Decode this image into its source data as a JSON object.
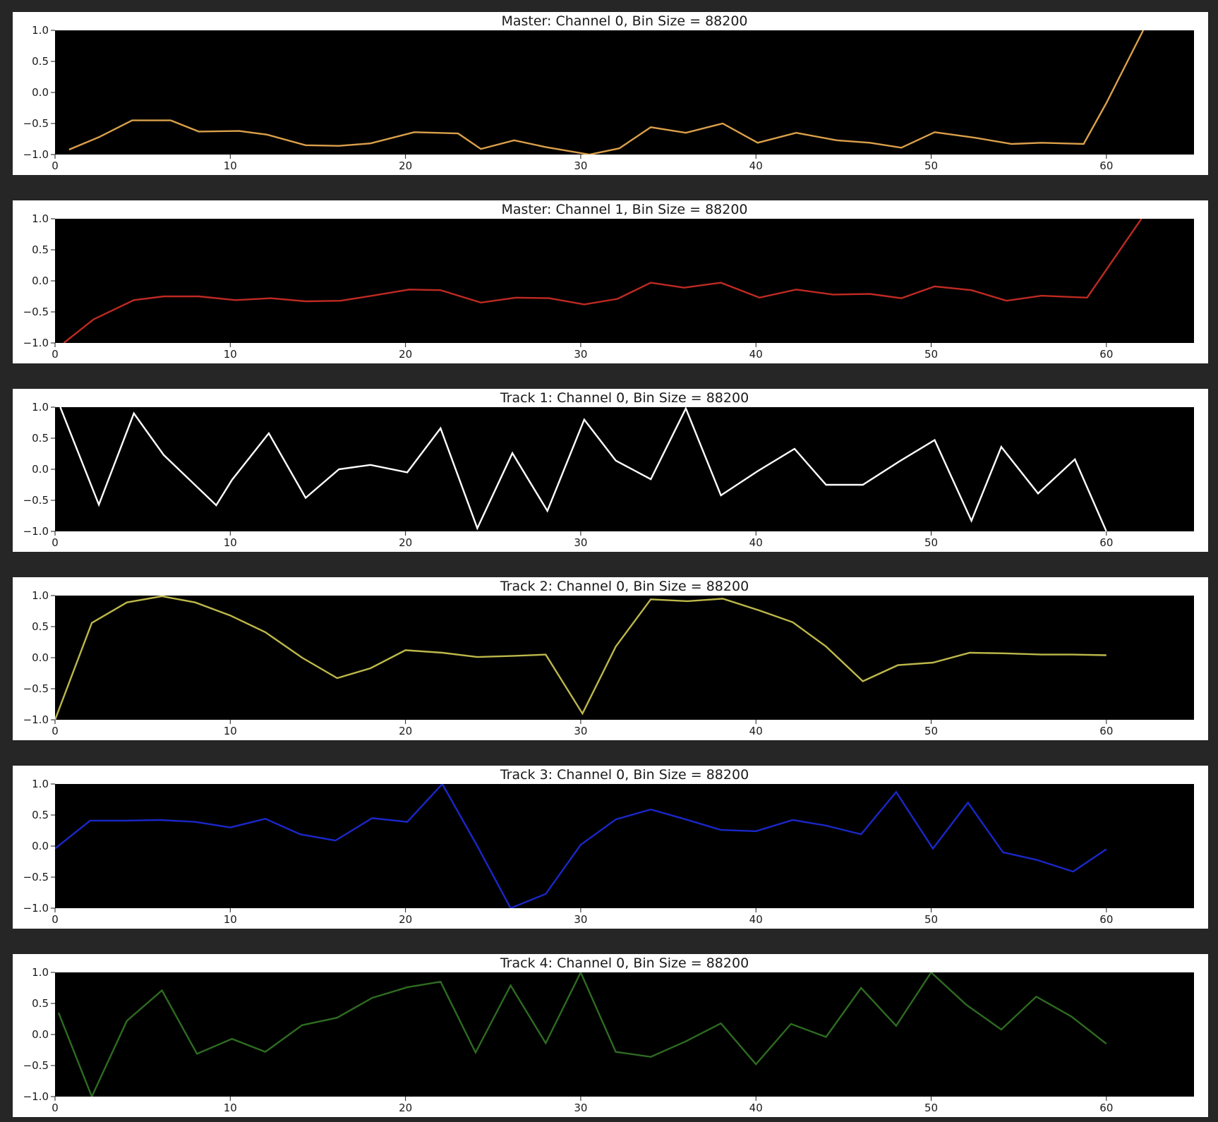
{
  "chart_data": [
    {
      "type": "line",
      "title": "Master: Channel 0, Bin Size = 88200",
      "xlim": [
        0,
        65
      ],
      "ylim": [
        -1.0,
        1.0
      ],
      "xticks": [
        "0",
        "10",
        "20",
        "30",
        "40",
        "50",
        "60"
      ],
      "yticks": [
        "1.0",
        "0.5",
        "0.0",
        "−0.5",
        "−1.0"
      ],
      "background": "#000000",
      "color": "#dba04a",
      "x": [
        0.8,
        2.5,
        4.4,
        6.6,
        8.2,
        10.5,
        12.1,
        14.3,
        16.2,
        18.0,
        20.5,
        23.0,
        24.3,
        26.2,
        28.0,
        30.5,
        32.2,
        34.0,
        36.0,
        38.1,
        40.1,
        42.3,
        44.6,
        46.5,
        48.3,
        50.2,
        52.5,
        54.6,
        56.3,
        58.7,
        60.0,
        62.1
      ],
      "y": [
        -0.92,
        -0.72,
        -0.45,
        -0.45,
        -0.63,
        -0.62,
        -0.68,
        -0.85,
        -0.86,
        -0.82,
        -0.64,
        -0.66,
        -0.91,
        -0.77,
        -0.88,
        -1.0,
        -0.9,
        -0.56,
        -0.65,
        -0.5,
        -0.81,
        -0.65,
        -0.77,
        -0.81,
        -0.89,
        -0.64,
        -0.73,
        -0.83,
        -0.81,
        -0.83,
        -0.17,
        1.0
      ]
    },
    {
      "type": "line",
      "title": "Master: Channel 1, Bin Size = 88200",
      "xlim": [
        0,
        65
      ],
      "ylim": [
        -1.0,
        1.0
      ],
      "xticks": [
        "0",
        "10",
        "20",
        "30",
        "40",
        "50",
        "60"
      ],
      "yticks": [
        "1.0",
        "0.5",
        "0.0",
        "−0.5",
        "−1.0"
      ],
      "background": "#000000",
      "color": "#bf2a22",
      "x": [
        0.5,
        2.2,
        4.5,
        6.2,
        8.2,
        10.3,
        12.3,
        14.3,
        16.3,
        18.1,
        20.2,
        22.0,
        24.3,
        26.3,
        28.2,
        30.2,
        32.1,
        34.0,
        35.9,
        38.0,
        40.2,
        42.3,
        44.4,
        46.5,
        48.3,
        50.2,
        52.3,
        54.3,
        56.3,
        58.9,
        62.0
      ],
      "y": [
        -1.0,
        -0.62,
        -0.31,
        -0.25,
        -0.25,
        -0.31,
        -0.28,
        -0.33,
        -0.32,
        -0.24,
        -0.14,
        -0.15,
        -0.35,
        -0.27,
        -0.28,
        -0.38,
        -0.29,
        -0.03,
        -0.11,
        -0.03,
        -0.27,
        -0.14,
        -0.22,
        -0.21,
        -0.28,
        -0.09,
        -0.15,
        -0.32,
        -0.24,
        -0.27,
        1.0
      ]
    },
    {
      "type": "line",
      "title": "Track 1: Channel 0, Bin Size = 88200",
      "xlim": [
        0,
        65
      ],
      "ylim": [
        -1.0,
        1.0
      ],
      "xticks": [
        "0",
        "10",
        "20",
        "30",
        "40",
        "50",
        "60"
      ],
      "yticks": [
        "1.0",
        "0.5",
        "0.0",
        "−0.5",
        "−1.0"
      ],
      "background": "#000000",
      "color": "#ffffff",
      "x": [
        0.3,
        2.5,
        4.5,
        6.2,
        9.2,
        10.1,
        12.2,
        14.3,
        16.2,
        18.0,
        20.1,
        22.0,
        24.1,
        26.1,
        28.1,
        30.2,
        32.0,
        34.0,
        36.0,
        38.0,
        40.1,
        42.2,
        44.0,
        46.1,
        48.2,
        50.2,
        52.3,
        54.0,
        56.1,
        58.2,
        60.0
      ],
      "y": [
        1.0,
        -0.57,
        0.9,
        0.23,
        -0.58,
        -0.17,
        0.58,
        -0.46,
        0.0,
        0.07,
        -0.05,
        0.66,
        -0.95,
        0.26,
        -0.67,
        0.8,
        0.14,
        -0.16,
        0.98,
        -0.42,
        -0.03,
        0.33,
        -0.25,
        -0.25,
        0.13,
        0.47,
        -0.83,
        0.36,
        -0.39,
        0.16,
        -1.0
      ]
    },
    {
      "type": "line",
      "title": "Track 2: Channel 0, Bin Size = 88200",
      "xlim": [
        0,
        65
      ],
      "ylim": [
        -1.0,
        1.0
      ],
      "xticks": [
        "0",
        "10",
        "20",
        "30",
        "40",
        "50",
        "60"
      ],
      "yticks": [
        "1.0",
        "0.5",
        "0.0",
        "−0.5",
        "−1.0"
      ],
      "background": "#000000",
      "color": "#bdb84a",
      "x": [
        0.0,
        2.1,
        4.1,
        6.1,
        8.0,
        10.0,
        12.0,
        14.1,
        16.1,
        18.0,
        20.0,
        22.1,
        24.1,
        26.2,
        28.0,
        30.1,
        32.0,
        34.0,
        36.1,
        38.1,
        40.2,
        42.1,
        44.0,
        46.1,
        48.1,
        50.1,
        52.2,
        54.1,
        56.3,
        58.1,
        60.0
      ],
      "y": [
        -1.0,
        0.56,
        0.89,
        0.99,
        0.89,
        0.68,
        0.41,
        0.0,
        -0.33,
        -0.17,
        0.12,
        0.08,
        0.01,
        0.03,
        0.05,
        -0.9,
        0.18,
        0.94,
        0.91,
        0.95,
        0.76,
        0.57,
        0.18,
        -0.38,
        -0.12,
        -0.08,
        0.08,
        0.07,
        0.05,
        0.05,
        0.04
      ]
    },
    {
      "type": "line",
      "title": "Track 3: Channel 0, Bin Size = 88200",
      "xlim": [
        0,
        65
      ],
      "ylim": [
        -1.0,
        1.0
      ],
      "xticks": [
        "0",
        "10",
        "20",
        "30",
        "40",
        "50",
        "60"
      ],
      "yticks": [
        "1.0",
        "0.5",
        "0.0",
        "−0.5",
        "−1.0"
      ],
      "background": "#000000",
      "color": "#1a27c9",
      "x": [
        0.0,
        2.0,
        4.0,
        6.0,
        8.0,
        10.0,
        12.0,
        14.0,
        16.0,
        18.1,
        20.1,
        22.1,
        24.1,
        26.0,
        28.0,
        30.0,
        32.0,
        34.0,
        36.0,
        38.0,
        40.0,
        42.1,
        44.0,
        46.0,
        48.0,
        50.1,
        52.1,
        54.1,
        56.0,
        58.1,
        60.0
      ],
      "y": [
        -0.04,
        0.41,
        0.41,
        0.42,
        0.39,
        0.3,
        0.44,
        0.19,
        0.09,
        0.45,
        0.39,
        1.0,
        0.0,
        -1.0,
        -0.77,
        0.02,
        0.43,
        0.59,
        0.43,
        0.26,
        0.24,
        0.42,
        0.33,
        0.19,
        0.87,
        -0.04,
        0.7,
        -0.1,
        -0.22,
        -0.41,
        -0.05
      ]
    },
    {
      "type": "line",
      "title": "Track 4: Channel 0, Bin Size = 88200",
      "xlim": [
        0,
        65
      ],
      "ylim": [
        -1.0,
        1.0
      ],
      "xticks": [
        "0",
        "10",
        "20",
        "30",
        "40",
        "50",
        "60"
      ],
      "yticks": [
        "1.0",
        "0.5",
        "0.0",
        "−0.5",
        "−1.0"
      ],
      "background": "#000000",
      "color": "#2e6b21",
      "x": [
        0.2,
        2.1,
        4.1,
        6.1,
        8.1,
        10.1,
        12.0,
        14.1,
        16.1,
        18.1,
        20.1,
        22.0,
        24.0,
        26.0,
        28.0,
        30.0,
        32.0,
        34.0,
        36.0,
        38.0,
        40.0,
        42.0,
        44.0,
        46.0,
        48.0,
        50.0,
        52.0,
        54.0,
        56.0,
        58.0,
        60.0
      ],
      "y": [
        0.35,
        -1.0,
        0.22,
        0.71,
        -0.31,
        -0.07,
        -0.28,
        0.15,
        0.27,
        0.59,
        0.76,
        0.85,
        -0.29,
        0.79,
        -0.14,
        1.0,
        -0.28,
        -0.36,
        -0.11,
        0.18,
        -0.48,
        0.17,
        -0.04,
        0.75,
        0.14,
        1.0,
        0.48,
        0.08,
        0.61,
        0.29,
        -0.15
      ]
    }
  ]
}
